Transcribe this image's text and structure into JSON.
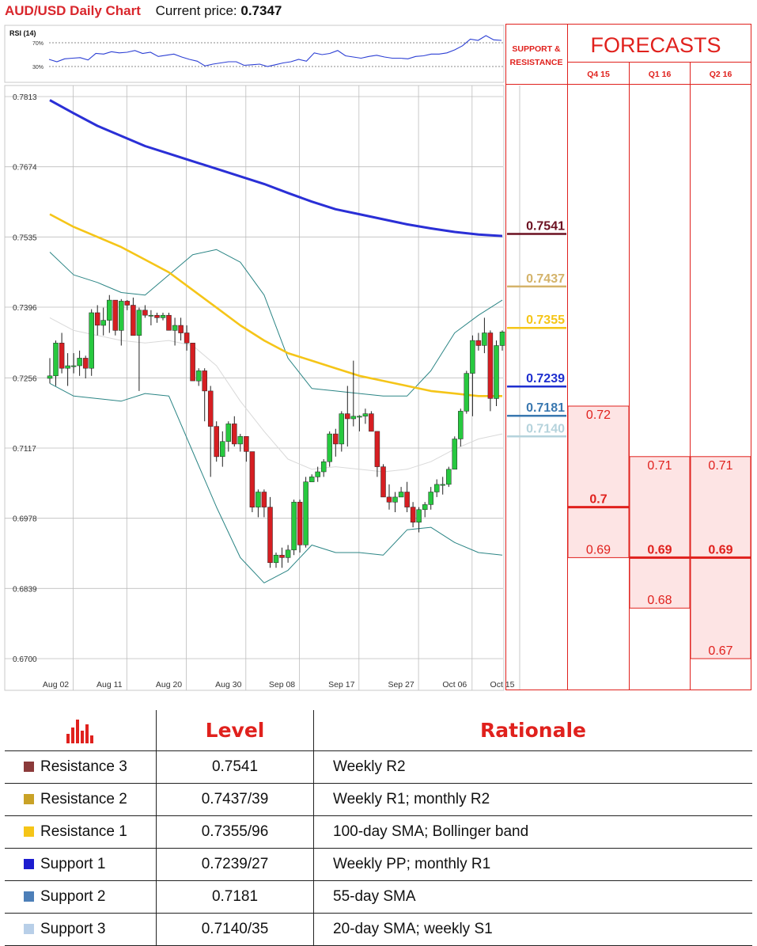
{
  "header": {
    "title": "AUD/USD Daily Chart",
    "price_label": "Current price:",
    "price_value": "0.7347"
  },
  "colors": {
    "sma200": "#2a2fd6",
    "sma100": "#f5c518",
    "bollinger": "#2b8585",
    "sma20": "#d9d9d9",
    "bull": "#27c93f",
    "bear": "#d61e22",
    "accent_red": "#e0211d",
    "zone_fill": "#fde4e4"
  },
  "chart_data": [
    {
      "type": "line",
      "title": "RSI (14)",
      "yticks": [
        "70%",
        "30%"
      ],
      "ylim": [
        0,
        100
      ],
      "series": [
        {
          "name": "RSI (14)",
          "values": [
            42,
            38,
            43,
            44,
            45,
            41,
            52,
            51,
            55,
            53,
            54,
            57,
            52,
            54,
            47,
            49,
            51,
            46,
            42,
            39,
            31,
            34,
            36,
            38,
            38,
            32,
            33,
            34,
            30,
            33,
            36,
            38,
            42,
            39,
            53,
            50,
            52,
            57,
            48,
            46,
            44,
            47,
            49,
            46,
            44,
            44,
            43,
            47,
            48,
            51,
            51,
            53,
            58,
            65,
            76,
            74,
            82,
            75,
            74
          ]
        }
      ]
    },
    {
      "type": "candlestick",
      "yticks": [
        "0.7813",
        "0.7674",
        "0.7535",
        "0.7396",
        "0.7256",
        "0.7117",
        "0.6978",
        "0.6839",
        "0.6700"
      ],
      "ylim": [
        0.67,
        0.784
      ],
      "xticks": [
        "Aug 02",
        "Aug 11",
        "Aug 20",
        "Aug 30",
        "Sep 08",
        "Sep 17",
        "Sep 27",
        "Oct 06",
        "Oct 15"
      ],
      "grid": true,
      "candles": [
        [
          0.7255,
          0.7295,
          0.7245,
          0.726
        ],
        [
          0.726,
          0.733,
          0.724,
          0.7325
        ],
        [
          0.7325,
          0.7345,
          0.7265,
          0.7275
        ],
        [
          0.7275,
          0.7305,
          0.724,
          0.728
        ],
        [
          0.728,
          0.7305,
          0.7265,
          0.728
        ],
        [
          0.728,
          0.731,
          0.726,
          0.7295
        ],
        [
          0.7295,
          0.73,
          0.7255,
          0.7275
        ],
        [
          0.7275,
          0.7392,
          0.726,
          0.7385
        ],
        [
          0.7385,
          0.74,
          0.734,
          0.736
        ],
        [
          0.736,
          0.7395,
          0.734,
          0.737
        ],
        [
          0.737,
          0.742,
          0.7345,
          0.741
        ],
        [
          0.741,
          0.741,
          0.734,
          0.735
        ],
        [
          0.735,
          0.7412,
          0.732,
          0.7408
        ],
        [
          0.7408,
          0.741,
          0.739,
          0.74
        ],
        [
          0.74,
          0.7415,
          0.734,
          0.734
        ],
        [
          0.734,
          0.7395,
          0.723,
          0.739
        ],
        [
          0.739,
          0.74,
          0.7375,
          0.738
        ],
        [
          0.738,
          0.739,
          0.736,
          0.738
        ],
        [
          0.738,
          0.7385,
          0.7365,
          0.7375
        ],
        [
          0.7375,
          0.7385,
          0.737,
          0.738
        ],
        [
          0.738,
          0.7385,
          0.735,
          0.735
        ],
        [
          0.735,
          0.7375,
          0.732,
          0.736
        ],
        [
          0.736,
          0.7375,
          0.733,
          0.7345
        ],
        [
          0.7345,
          0.736,
          0.731,
          0.7325
        ],
        [
          0.7325,
          0.7325,
          0.725,
          0.725
        ],
        [
          0.725,
          0.7275,
          0.724,
          0.727
        ],
        [
          0.727,
          0.7275,
          0.717,
          0.723
        ],
        [
          0.723,
          0.724,
          0.706,
          0.716
        ],
        [
          0.716,
          0.717,
          0.709,
          0.71
        ],
        [
          0.71,
          0.715,
          0.708,
          0.713
        ],
        [
          0.713,
          0.717,
          0.711,
          0.7165
        ],
        [
          0.7165,
          0.718,
          0.712,
          0.7125
        ],
        [
          0.7125,
          0.7145,
          0.711,
          0.714
        ],
        [
          0.714,
          0.714,
          0.709,
          0.711
        ],
        [
          0.711,
          0.711,
          0.699,
          0.7
        ],
        [
          0.7,
          0.7035,
          0.698,
          0.703
        ],
        [
          0.703,
          0.7035,
          0.698,
          0.7
        ],
        [
          0.7,
          0.702,
          0.688,
          0.689
        ],
        [
          0.689,
          0.691,
          0.688,
          0.6905
        ],
        [
          0.6905,
          0.692,
          0.688,
          0.69
        ],
        [
          0.69,
          0.6925,
          0.689,
          0.6915
        ],
        [
          0.6915,
          0.7015,
          0.6905,
          0.701
        ],
        [
          0.701,
          0.7015,
          0.691,
          0.6925
        ],
        [
          0.6925,
          0.706,
          0.692,
          0.705
        ],
        [
          0.705,
          0.7065,
          0.705,
          0.706
        ],
        [
          0.706,
          0.708,
          0.705,
          0.707
        ],
        [
          0.707,
          0.7095,
          0.706,
          0.709
        ],
        [
          0.709,
          0.715,
          0.708,
          0.7145
        ],
        [
          0.7145,
          0.7155,
          0.71,
          0.7125
        ],
        [
          0.7125,
          0.719,
          0.711,
          0.7185
        ],
        [
          0.7185,
          0.724,
          0.712,
          0.7175
        ],
        [
          0.7175,
          0.729,
          0.716,
          0.718
        ],
        [
          0.718,
          0.7182,
          0.715,
          0.718
        ],
        [
          0.718,
          0.7195,
          0.7165,
          0.7185
        ],
        [
          0.7185,
          0.719,
          0.715,
          0.715
        ],
        [
          0.715,
          0.715,
          0.706,
          0.708
        ],
        [
          0.708,
          0.7085,
          0.702,
          0.702
        ],
        [
          0.702,
          0.7045,
          0.6995,
          0.701
        ],
        [
          0.701,
          0.703,
          0.699,
          0.702
        ],
        [
          0.702,
          0.704,
          0.702,
          0.703
        ],
        [
          0.703,
          0.705,
          0.699,
          0.7
        ],
        [
          0.7,
          0.701,
          0.696,
          0.697
        ],
        [
          0.697,
          0.7,
          0.695,
          0.6995
        ],
        [
          0.6995,
          0.701,
          0.698,
          0.7005
        ],
        [
          0.7005,
          0.704,
          0.6995,
          0.703
        ],
        [
          0.703,
          0.7055,
          0.702,
          0.7045
        ],
        [
          0.7045,
          0.706,
          0.7025,
          0.7045
        ],
        [
          0.7045,
          0.708,
          0.704,
          0.7075
        ],
        [
          0.7075,
          0.714,
          0.7075,
          0.7135
        ],
        [
          0.7135,
          0.7195,
          0.712,
          0.719
        ],
        [
          0.719,
          0.727,
          0.7185,
          0.7265
        ],
        [
          0.7265,
          0.734,
          0.718,
          0.733
        ],
        [
          0.733,
          0.7345,
          0.731,
          0.732
        ],
        [
          0.732,
          0.7375,
          0.7305,
          0.7345
        ],
        [
          0.7345,
          0.735,
          0.719,
          0.7215
        ],
        [
          0.7215,
          0.733,
          0.72,
          0.732
        ],
        [
          0.732,
          0.735,
          0.731,
          0.7347
        ]
      ],
      "series": [
        {
          "name": "200-day SMA",
          "values": [
            0.7806,
            0.778,
            0.7755,
            0.7735,
            0.7715,
            0.77,
            0.7685,
            0.767,
            0.7655,
            0.764,
            0.7622,
            0.7605,
            0.759,
            0.758,
            0.757,
            0.756,
            0.7552,
            0.7545,
            0.754,
            0.7537
          ]
        },
        {
          "name": "100-day SMA",
          "values": [
            0.758,
            0.7555,
            0.7535,
            0.7515,
            0.749,
            0.7465,
            0.743,
            0.7395,
            0.736,
            0.733,
            0.7305,
            0.729,
            0.7275,
            0.726,
            0.725,
            0.724,
            0.723,
            0.7225,
            0.722,
            0.722
          ]
        },
        {
          "name": "Upper Bollinger band",
          "values": [
            0.7505,
            0.746,
            0.7445,
            0.7425,
            0.742,
            0.746,
            0.75,
            0.751,
            0.7485,
            0.742,
            0.7295,
            0.7235,
            0.723,
            0.7225,
            0.722,
            0.722,
            0.727,
            0.7345,
            0.738,
            0.741
          ]
        },
        {
          "name": "Lower Bollinger band",
          "values": [
            0.7245,
            0.722,
            0.7215,
            0.721,
            0.7225,
            0.722,
            0.711,
            0.7,
            0.69,
            0.685,
            0.6875,
            0.6925,
            0.691,
            0.691,
            0.6905,
            0.6955,
            0.696,
            0.693,
            0.691,
            0.6905
          ]
        },
        {
          "name": "20-day SMA",
          "values": [
            0.7375,
            0.735,
            0.734,
            0.733,
            0.7325,
            0.733,
            0.732,
            0.728,
            0.721,
            0.715,
            0.7095,
            0.7075,
            0.708,
            0.7075,
            0.707,
            0.7075,
            0.709,
            0.7115,
            0.7135,
            0.7145
          ]
        }
      ]
    }
  ],
  "support_resistance": {
    "header": [
      "SUPPORT &",
      "RESISTANCE"
    ],
    "levels": [
      {
        "label": "0.7541",
        "value": 0.7541,
        "color": "#6b1020"
      },
      {
        "label": "0.7437",
        "value": 0.7437,
        "color": "#d4b36a"
      },
      {
        "label": "0.7355",
        "value": 0.7355,
        "color": "#f5c518"
      },
      {
        "label": "0.7239",
        "value": 0.7239,
        "color": "#1f2fcf"
      },
      {
        "label": "0.7181",
        "value": 0.7181,
        "color": "#3a78b0"
      },
      {
        "label": "0.7140",
        "value": 0.714,
        "color": "#b5d3dc"
      }
    ]
  },
  "forecasts": {
    "title": "FORECASTS",
    "columns": [
      {
        "label": "Q4 15",
        "high": 0.72,
        "low": 0.69,
        "median": 0.7,
        "high_label": "0.72",
        "low_label": "0.69",
        "median_label": "0.7"
      },
      {
        "label": "Q1 16",
        "high": 0.71,
        "low": 0.68,
        "median": 0.69,
        "high_label": "0.71",
        "low_label": "0.68",
        "median_label": "0.69"
      },
      {
        "label": "Q2 16",
        "high": 0.71,
        "low": 0.67,
        "median": 0.69,
        "high_label": "0.71",
        "low_label": "0.67",
        "median_label": "0.69"
      }
    ]
  },
  "table": {
    "headers": {
      "level": "Level",
      "rationale": "Rationale"
    },
    "rows": [
      {
        "name": "Resistance 3",
        "level": "0.7541",
        "rationale": "Weekly R2",
        "color": "#8b3a3a"
      },
      {
        "name": "Resistance 2",
        "level": "0.7437/39",
        "rationale": "Weekly R1; monthly R2",
        "color": "#c9a227"
      },
      {
        "name": "Resistance 1",
        "level": "0.7355/96",
        "rationale": "100-day SMA; Bollinger band",
        "color": "#f5c518"
      },
      {
        "name": "Support 1",
        "level": "0.7239/27",
        "rationale": "Weekly PP; monthly R1",
        "color": "#1d1dcf"
      },
      {
        "name": "Support 2",
        "level": "0.7181",
        "rationale": "55-day SMA",
        "color": "#4d7fb8"
      },
      {
        "name": "Support 3",
        "level": "0.7140/35",
        "rationale": "20-day SMA; weekly S1",
        "color": "#b8cfe8"
      }
    ]
  }
}
